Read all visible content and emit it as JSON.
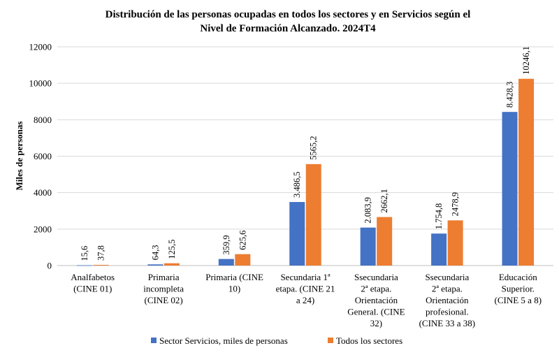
{
  "chart_data": {
    "type": "bar",
    "title": "Distribución de las personas ocupadas en todos los sectores y en Servicios según el Nivel de Formación Alcanzado. 2024T4",
    "title_lines": [
      "Distribución de las personas ocupadas en todos los sectores y en Servicios según el",
      "Nivel de Formación Alcanzado. 2024T4"
    ],
    "ylabel": "Miles de personas",
    "xlabel": "",
    "ylim": [
      0,
      12000
    ],
    "yticks": [
      "0",
      "2000",
      "4000",
      "6000",
      "8000",
      "10000",
      "12000"
    ],
    "grid": true,
    "legend_position": "bottom",
    "categories": [
      [
        "Analfabetos",
        "(CINE 01)"
      ],
      [
        "Primaria",
        "incompleta",
        "(CINE 02)"
      ],
      [
        "Primaria (CINE",
        "10)"
      ],
      [
        "Secundaria 1ª",
        "etapa. (CINE 21",
        "a 24)"
      ],
      [
        "Ssecundaria",
        "2ª etapa.",
        "Orientación",
        "General. (CINE",
        "32)"
      ],
      [
        "Ssecundaria",
        "2ª etapa.",
        "Orientación",
        "profesional.",
        "(CINE 33 a 38)"
      ],
      [
        "Educación",
        "Superior.",
        "(CINE 5 a 8)"
      ]
    ],
    "series": [
      {
        "name": "Sector Servicios, miles de personas",
        "color": "#4472C4",
        "values": [
          15.6,
          64.3,
          359.9,
          3486.5,
          2083.9,
          1754.8,
          8428.3
        ],
        "labels": [
          "15,6",
          "64,3",
          "359,9",
          "3.486,5",
          "2.083,9",
          "1.754,8",
          "8.428,3"
        ]
      },
      {
        "name": "Todos los sectores",
        "color": "#ED7D31",
        "values": [
          37.8,
          125.5,
          625.6,
          5565.2,
          2662.1,
          2478.9,
          10246.1
        ],
        "labels": [
          "37,8",
          "125,5",
          "625,6",
          "5565,2",
          "2662,1",
          "2478,9",
          "10246,1"
        ]
      }
    ]
  }
}
